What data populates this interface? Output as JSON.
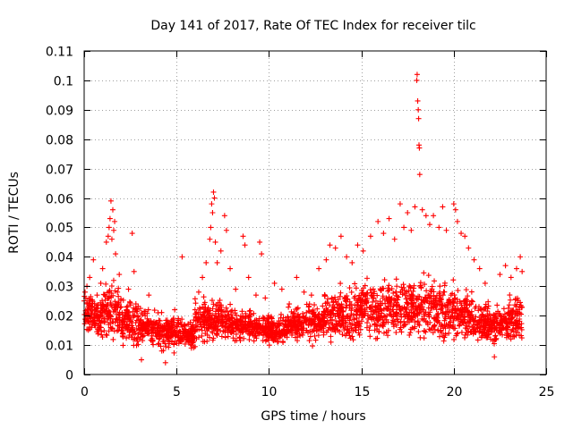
{
  "chart_data": {
    "type": "scatter",
    "title": "Day 141 of 2017, Rate Of TEC Index for receiver tilc",
    "xlabel": "GPS time / hours",
    "ylabel": "ROTI / TECUs",
    "xlim": [
      0,
      25
    ],
    "ylim": [
      0,
      0.11
    ],
    "xticks": [
      0,
      5,
      10,
      15,
      20,
      25
    ],
    "xtick_labels": [
      "0",
      "5",
      "10",
      "15",
      "20",
      "25"
    ],
    "yticks": [
      0,
      0.01,
      0.02,
      0.03,
      0.04,
      0.05,
      0.06,
      0.07,
      0.08,
      0.09,
      0.1,
      0.11
    ],
    "ytick_labels": [
      "0",
      "0.01",
      "0.02",
      "0.03",
      "0.04",
      "0.05",
      "0.06",
      "0.07",
      "0.08",
      "0.09",
      "0.1",
      "0.11"
    ],
    "grid": true,
    "marker": "+",
    "color": "#ff0000",
    "series": [
      {
        "name": "ROTI",
        "points": [
          [
            0.0,
            0.025
          ],
          [
            0.05,
            0.028
          ],
          [
            0.1,
            0.021
          ],
          [
            0.15,
            0.03
          ],
          [
            0.2,
            0.018
          ],
          [
            0.25,
            0.024
          ],
          [
            0.3,
            0.033
          ],
          [
            0.4,
            0.016
          ],
          [
            0.5,
            0.039
          ],
          [
            0.6,
            0.022
          ],
          [
            0.7,
            0.027
          ],
          [
            0.8,
            0.015
          ],
          [
            0.9,
            0.031
          ],
          [
            1.0,
            0.036
          ],
          [
            1.1,
            0.019
          ],
          [
            1.2,
            0.045
          ],
          [
            1.3,
            0.047
          ],
          [
            1.35,
            0.05
          ],
          [
            1.4,
            0.053
          ],
          [
            1.45,
            0.059
          ],
          [
            1.5,
            0.046
          ],
          [
            1.55,
            0.056
          ],
          [
            1.6,
            0.049
          ],
          [
            1.65,
            0.052
          ],
          [
            1.7,
            0.041
          ],
          [
            1.8,
            0.028
          ],
          [
            1.9,
            0.034
          ],
          [
            2.0,
            0.023
          ],
          [
            2.2,
            0.017
          ],
          [
            2.4,
            0.029
          ],
          [
            2.6,
            0.048
          ],
          [
            2.7,
            0.035
          ],
          [
            2.8,
            0.024
          ],
          [
            3.0,
            0.012
          ],
          [
            3.1,
            0.005
          ],
          [
            3.3,
            0.02
          ],
          [
            3.5,
            0.027
          ],
          [
            3.7,
            0.015
          ],
          [
            4.0,
            0.021
          ],
          [
            4.2,
            0.008
          ],
          [
            4.4,
            0.004
          ],
          [
            4.5,
            0.013
          ],
          [
            4.7,
            0.018
          ],
          [
            4.9,
            0.022
          ],
          [
            5.1,
            0.019
          ],
          [
            5.3,
            0.04
          ],
          [
            5.5,
            0.014
          ],
          [
            5.8,
            0.009
          ],
          [
            6.0,
            0.022
          ],
          [
            6.2,
            0.028
          ],
          [
            6.4,
            0.033
          ],
          [
            6.6,
            0.038
          ],
          [
            6.8,
            0.046
          ],
          [
            6.85,
            0.05
          ],
          [
            6.9,
            0.058
          ],
          [
            6.95,
            0.055
          ],
          [
            7.0,
            0.062
          ],
          [
            7.05,
            0.06
          ],
          [
            7.1,
            0.045
          ],
          [
            7.2,
            0.038
          ],
          [
            7.4,
            0.042
          ],
          [
            7.6,
            0.054
          ],
          [
            7.7,
            0.049
          ],
          [
            7.9,
            0.036
          ],
          [
            8.2,
            0.029
          ],
          [
            8.6,
            0.047
          ],
          [
            8.7,
            0.044
          ],
          [
            8.9,
            0.033
          ],
          [
            9.3,
            0.027
          ],
          [
            9.5,
            0.045
          ],
          [
            9.6,
            0.041
          ],
          [
            9.8,
            0.026
          ],
          [
            10.0,
            0.018
          ],
          [
            10.3,
            0.031
          ],
          [
            10.7,
            0.029
          ],
          [
            11.1,
            0.024
          ],
          [
            11.5,
            0.033
          ],
          [
            11.9,
            0.028
          ],
          [
            12.3,
            0.027
          ],
          [
            12.7,
            0.036
          ],
          [
            13.1,
            0.039
          ],
          [
            13.3,
            0.044
          ],
          [
            13.6,
            0.043
          ],
          [
            13.9,
            0.047
          ],
          [
            14.2,
            0.04
          ],
          [
            14.5,
            0.038
          ],
          [
            14.8,
            0.044
          ],
          [
            15.1,
            0.042
          ],
          [
            15.5,
            0.047
          ],
          [
            15.9,
            0.052
          ],
          [
            16.2,
            0.048
          ],
          [
            16.5,
            0.053
          ],
          [
            16.8,
            0.046
          ],
          [
            17.1,
            0.058
          ],
          [
            17.3,
            0.05
          ],
          [
            17.5,
            0.055
          ],
          [
            17.7,
            0.049
          ],
          [
            17.9,
            0.057
          ],
          [
            18.0,
            0.1
          ],
          [
            18.02,
            0.102
          ],
          [
            18.05,
            0.093
          ],
          [
            18.08,
            0.09
          ],
          [
            18.1,
            0.087
          ],
          [
            18.12,
            0.078
          ],
          [
            18.14,
            0.077
          ],
          [
            18.16,
            0.068
          ],
          [
            18.3,
            0.056
          ],
          [
            18.5,
            0.054
          ],
          [
            18.7,
            0.051
          ],
          [
            18.9,
            0.054
          ],
          [
            19.2,
            0.05
          ],
          [
            19.4,
            0.057
          ],
          [
            19.6,
            0.049
          ],
          [
            20.0,
            0.058
          ],
          [
            20.1,
            0.056
          ],
          [
            20.2,
            0.052
          ],
          [
            20.4,
            0.048
          ],
          [
            20.6,
            0.047
          ],
          [
            20.8,
            0.043
          ],
          [
            21.1,
            0.039
          ],
          [
            21.4,
            0.036
          ],
          [
            21.7,
            0.031
          ],
          [
            22.0,
            0.012
          ],
          [
            22.2,
            0.006
          ],
          [
            22.5,
            0.034
          ],
          [
            22.8,
            0.037
          ],
          [
            23.1,
            0.033
          ],
          [
            23.4,
            0.036
          ],
          [
            23.6,
            0.04
          ],
          [
            23.7,
            0.035
          ]
        ],
        "bands": [
          {
            "x": [
              0.0,
              0.5
            ],
            "y": [
              0.012,
              0.03
            ]
          },
          {
            "x": [
              0.5,
              1.0
            ],
            "y": [
              0.01,
              0.028
            ]
          },
          {
            "x": [
              1.0,
              2.0
            ],
            "y": [
              0.009,
              0.033
            ]
          },
          {
            "x": [
              2.0,
              3.0
            ],
            "y": [
              0.008,
              0.028
            ]
          },
          {
            "x": [
              3.0,
              4.0
            ],
            "y": [
              0.008,
              0.024
            ]
          },
          {
            "x": [
              4.0,
              5.0
            ],
            "y": [
              0.006,
              0.022
            ]
          },
          {
            "x": [
              5.0,
              6.0
            ],
            "y": [
              0.008,
              0.02
            ]
          },
          {
            "x": [
              6.0,
              7.0
            ],
            "y": [
              0.009,
              0.028
            ]
          },
          {
            "x": [
              7.0,
              8.0
            ],
            "y": [
              0.01,
              0.027
            ]
          },
          {
            "x": [
              8.0,
              9.0
            ],
            "y": [
              0.01,
              0.023
            ]
          },
          {
            "x": [
              9.0,
              10.0
            ],
            "y": [
              0.01,
              0.022
            ]
          },
          {
            "x": [
              10.0,
              11.0
            ],
            "y": [
              0.009,
              0.022
            ]
          },
          {
            "x": [
              11.0,
              12.0
            ],
            "y": [
              0.01,
              0.024
            ]
          },
          {
            "x": [
              12.0,
              13.0
            ],
            "y": [
              0.009,
              0.026
            ]
          },
          {
            "x": [
              13.0,
              14.0
            ],
            "y": [
              0.009,
              0.032
            ]
          },
          {
            "x": [
              14.0,
              15.0
            ],
            "y": [
              0.009,
              0.033
            ]
          },
          {
            "x": [
              15.0,
              16.0
            ],
            "y": [
              0.01,
              0.034
            ]
          },
          {
            "x": [
              16.0,
              17.0
            ],
            "y": [
              0.01,
              0.035
            ]
          },
          {
            "x": [
              17.0,
              18.0
            ],
            "y": [
              0.01,
              0.036
            ]
          },
          {
            "x": [
              18.0,
              19.0
            ],
            "y": [
              0.009,
              0.037
            ]
          },
          {
            "x": [
              19.0,
              20.0
            ],
            "y": [
              0.008,
              0.035
            ]
          },
          {
            "x": [
              20.0,
              21.0
            ],
            "y": [
              0.009,
              0.032
            ]
          },
          {
            "x": [
              21.0,
              22.0
            ],
            "y": [
              0.008,
              0.028
            ]
          },
          {
            "x": [
              22.0,
              23.0
            ],
            "y": [
              0.008,
              0.026
            ]
          },
          {
            "x": [
              23.0,
              23.7
            ],
            "y": [
              0.01,
              0.028
            ]
          }
        ]
      }
    ]
  }
}
